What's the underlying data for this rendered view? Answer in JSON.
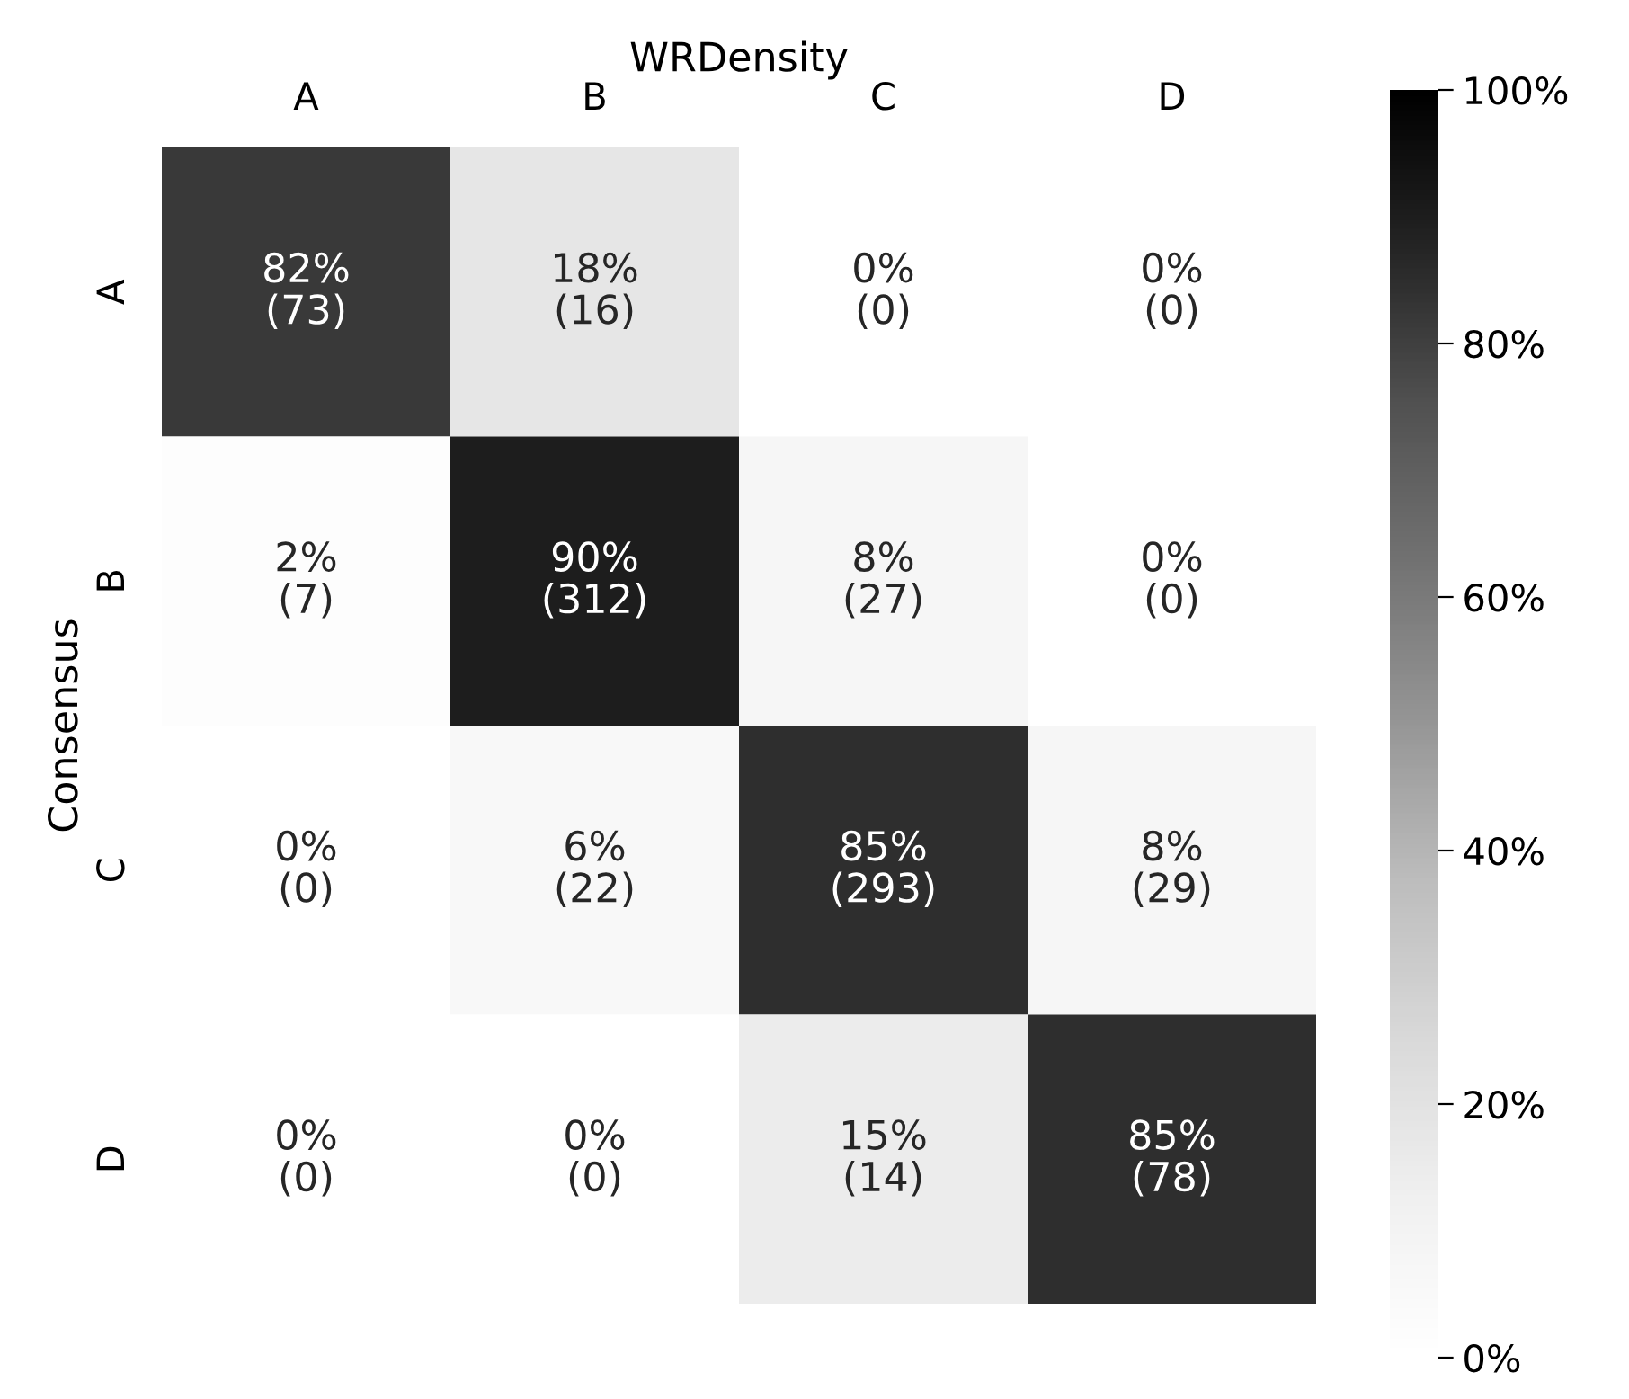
{
  "chart_data": {
    "type": "heatmap",
    "xlabel": "WRDensity",
    "ylabel": "Consensus",
    "categories": [
      "A",
      "B",
      "C",
      "D"
    ],
    "y_categories": [
      "A",
      "B",
      "C",
      "D"
    ],
    "cells": [
      [
        82,
        18,
        0,
        0
      ],
      [
        2,
        90,
        8,
        0
      ],
      [
        0,
        6,
        85,
        8
      ],
      [
        0,
        0,
        15,
        85
      ]
    ],
    "cell_labels": [
      [
        "82%\n(73)",
        "18%\n(16)",
        "0%\n(0)",
        "0%\n(0)"
      ],
      [
        "2%\n(7)",
        "90%\n(312)",
        "8%\n(27)",
        "0%\n(0)"
      ],
      [
        "0%\n(0)",
        "6%\n(22)",
        "85%\n(293)",
        "8%\n(29)"
      ],
      [
        "0%\n(0)",
        "0%\n(0)",
        "15%\n(14)",
        "85%\n(78)"
      ]
    ],
    "clim": [
      0,
      100
    ],
    "cticks": [
      {
        "value": 0,
        "label": "0%"
      },
      {
        "value": 20,
        "label": "20%"
      },
      {
        "value": 40,
        "label": "40%"
      },
      {
        "value": 60,
        "label": "60%"
      },
      {
        "value": 80,
        "label": "80%"
      },
      {
        "value": 100,
        "label": "100%"
      }
    ]
  }
}
